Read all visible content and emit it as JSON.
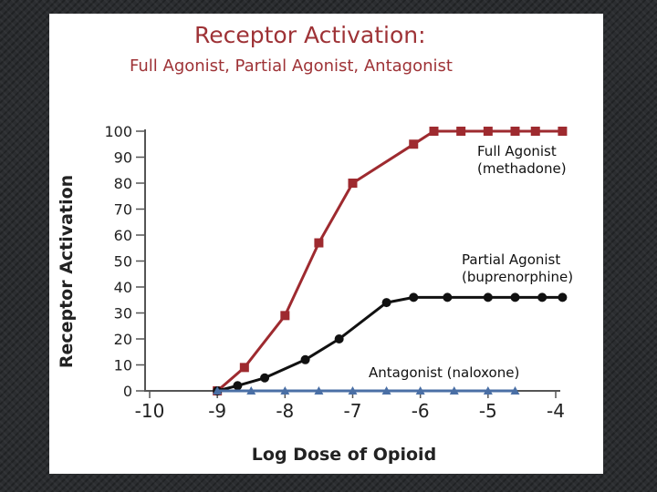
{
  "chart_data": {
    "type": "line",
    "title": "Receptor Activation:",
    "subtitle": "Full Agonist, Partial Agonist, Antagonist",
    "xlabel": "Log Dose of Opioid",
    "ylabel": "Receptor Activation",
    "xlim": [
      -10,
      -4
    ],
    "ylim": [
      0,
      100
    ],
    "x_ticks": [
      -10,
      -9,
      -8,
      -7,
      -6,
      -5,
      -4
    ],
    "x_tick_labels": [
      "-10",
      "-9",
      "-8",
      "-7",
      "-6",
      "-5",
      "-4"
    ],
    "y_ticks": [
      0,
      10,
      20,
      30,
      40,
      50,
      60,
      70,
      80,
      90,
      100
    ],
    "y_tick_labels": [
      "0",
      "10",
      "20",
      "30",
      "40",
      "50",
      "60",
      "70",
      "80",
      "90",
      "100"
    ],
    "grid": false,
    "series": [
      {
        "label_lines": [
          "Full Agonist",
          "(methadone)"
        ],
        "color": "#9e2a2f",
        "marker": "square",
        "x": [
          -9.0,
          -8.6,
          -8.0,
          -7.5,
          -7.0,
          -6.1,
          -5.8,
          -5.4,
          -5.0,
          -4.6,
          -4.3,
          -3.9
        ],
        "y": [
          0,
          9,
          29,
          57,
          80,
          95,
          100,
          100,
          100,
          100,
          100,
          100
        ]
      },
      {
        "label_lines": [
          "Partial Agonist",
          "(buprenorphine)"
        ],
        "color": "#111111",
        "marker": "circle",
        "x": [
          -9.0,
          -8.7,
          -8.3,
          -7.7,
          -7.2,
          -6.5,
          -6.1,
          -5.6,
          -5.0,
          -4.6,
          -4.2,
          -3.9
        ],
        "y": [
          0,
          2,
          5,
          12,
          20,
          34,
          36,
          36,
          36,
          36,
          36,
          36
        ]
      },
      {
        "label_lines": [
          "Antagonist (naloxone)"
        ],
        "color": "#4a6fa5",
        "marker": "triangle",
        "x": [
          -9.0,
          -8.5,
          -8.0,
          -7.5,
          -7.0,
          -6.5,
          -6.0,
          -5.5,
          -5.0,
          -4.6
        ],
        "y": [
          0,
          0,
          0,
          0,
          0,
          0,
          0,
          0,
          0,
          0
        ]
      }
    ]
  }
}
